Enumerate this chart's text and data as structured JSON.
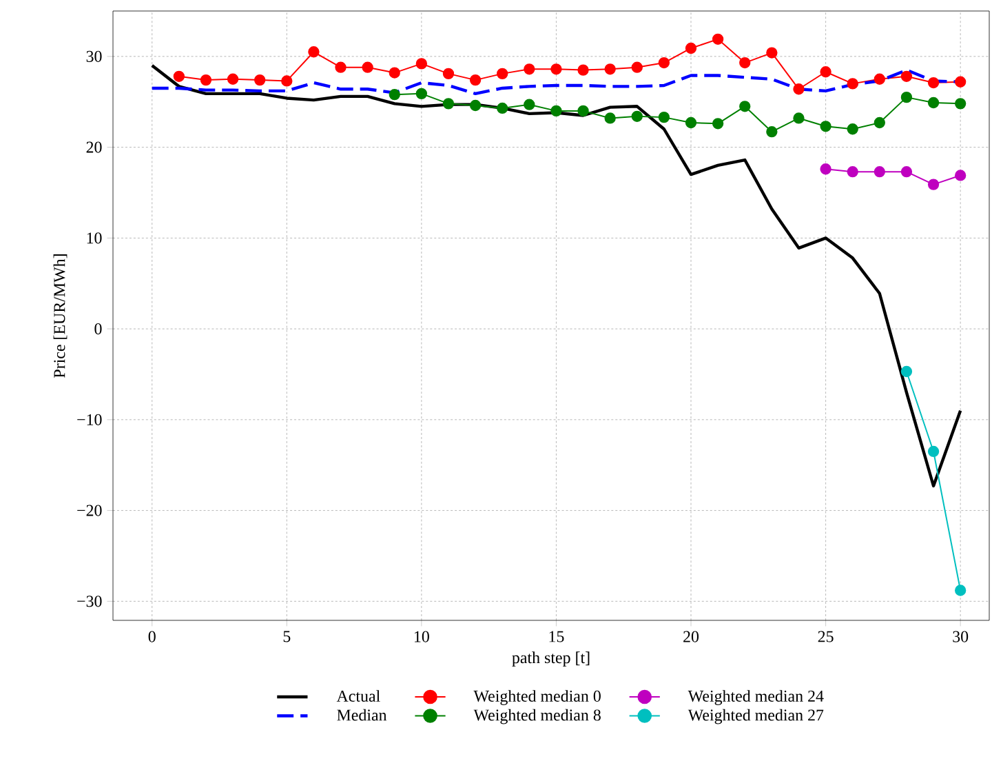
{
  "chart_data": {
    "type": "line",
    "xlabel": "path step [t]",
    "ylabel": "Price [EUR/MWh]",
    "xlim": [
      -1.45,
      31.07
    ],
    "ylim": [
      -32.1,
      35.0
    ],
    "xticks": [
      0,
      5,
      10,
      15,
      20,
      25,
      30
    ],
    "yticks": [
      {
        "value": -30,
        "label": "−30"
      },
      {
        "value": -20,
        "label": "−20"
      },
      {
        "value": -10,
        "label": "−10"
      },
      0,
      10,
      20,
      30
    ],
    "grid": true,
    "legend": "bottom",
    "series": [
      {
        "name": "Actual",
        "color": "#000000",
        "marker": "none",
        "line_style": "solid",
        "x": [
          0,
          1,
          2,
          3,
          4,
          5,
          6,
          7,
          8,
          9,
          10,
          11,
          12,
          13,
          14,
          15,
          16,
          17,
          18,
          19,
          20,
          21,
          22,
          23,
          24,
          25,
          26,
          27,
          28,
          29,
          30
        ],
        "values": [
          29.0,
          26.7,
          25.9,
          25.9,
          25.9,
          25.4,
          25.2,
          25.6,
          25.6,
          24.8,
          24.5,
          24.7,
          24.7,
          24.3,
          23.7,
          23.8,
          23.5,
          24.4,
          24.5,
          22.0,
          17.0,
          18.0,
          18.6,
          13.2,
          8.9,
          10.0,
          7.8,
          3.9,
          -7.0,
          -17.3,
          -9.0
        ]
      },
      {
        "name": "Median",
        "color": "#0000ff",
        "marker": "none",
        "line_style": "dashed",
        "x": [
          0,
          1,
          2,
          3,
          4,
          5,
          6,
          7,
          8,
          9,
          10,
          11,
          12,
          13,
          14,
          15,
          16,
          17,
          18,
          19,
          20,
          21,
          22,
          23,
          24,
          25,
          26,
          27,
          28,
          29,
          30
        ],
        "values": [
          26.5,
          26.5,
          26.3,
          26.3,
          26.2,
          26.2,
          27.1,
          26.4,
          26.4,
          26.0,
          27.1,
          26.8,
          25.9,
          26.5,
          26.7,
          26.8,
          26.8,
          26.7,
          26.7,
          26.8,
          27.9,
          27.9,
          27.7,
          27.5,
          26.4,
          26.2,
          26.9,
          27.3,
          28.5,
          27.3,
          27.2
        ]
      },
      {
        "name": "Weighted median 0",
        "color": "#ff0000",
        "marker": "circle",
        "line_style": "solid",
        "x": [
          1,
          2,
          3,
          4,
          5,
          6,
          7,
          8,
          9,
          10,
          11,
          12,
          13,
          14,
          15,
          16,
          17,
          18,
          19,
          20,
          21,
          22,
          23,
          24,
          25,
          26,
          27,
          28,
          29,
          30
        ],
        "values": [
          27.8,
          27.4,
          27.5,
          27.4,
          27.3,
          30.5,
          28.8,
          28.8,
          28.2,
          29.2,
          28.1,
          27.4,
          28.1,
          28.6,
          28.6,
          28.5,
          28.6,
          28.8,
          29.3,
          30.9,
          31.9,
          29.3,
          30.4,
          26.4,
          28.3,
          27.0,
          27.5,
          27.8,
          27.1,
          27.2
        ]
      },
      {
        "name": "Weighted median 8",
        "color": "#008000",
        "marker": "circle",
        "line_style": "solid",
        "x": [
          9,
          10,
          11,
          12,
          13,
          14,
          15,
          16,
          17,
          18,
          19,
          20,
          21,
          22,
          23,
          24,
          25,
          26,
          27,
          28,
          29,
          30
        ],
        "values": [
          25.8,
          25.9,
          24.8,
          24.6,
          24.3,
          24.7,
          24.0,
          24.0,
          23.2,
          23.4,
          23.3,
          22.7,
          22.6,
          24.5,
          21.7,
          23.2,
          22.3,
          22.0,
          22.7,
          25.5,
          24.9,
          24.8
        ]
      },
      {
        "name": "Weighted median 24",
        "color": "#bf00bf",
        "marker": "circle",
        "line_style": "solid",
        "x": [
          25,
          26,
          27,
          28,
          29,
          30
        ],
        "values": [
          17.6,
          17.3,
          17.3,
          17.3,
          15.9,
          16.9
        ]
      },
      {
        "name": "Weighted median 27",
        "color": "#00bfbf",
        "marker": "circle",
        "line_style": "solid",
        "x": [
          28,
          29,
          30
        ],
        "values": [
          -4.7,
          -13.5,
          -28.8
        ]
      }
    ]
  }
}
